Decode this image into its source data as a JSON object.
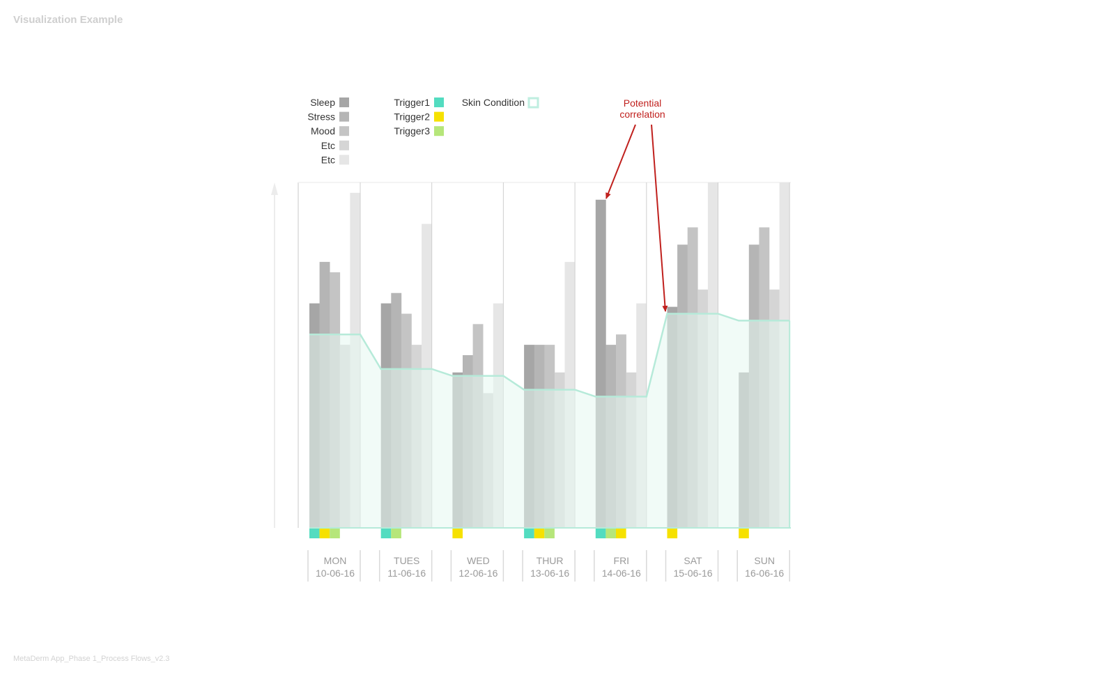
{
  "page": {
    "title": "Visualization Example",
    "footer": "MetaDerm App_Phase 1_Process Flows_v2.3"
  },
  "annotation": {
    "line1": "Potential",
    "line2": "correlation",
    "color": "#c0201d"
  },
  "chart_data": {
    "type": "bar",
    "title": "",
    "xlabel": "",
    "ylabel": "",
    "ylim": [
      0,
      100
    ],
    "grid": false,
    "legend_position": "top-left",
    "categories": [
      {
        "day": "MON",
        "date": "10-06-16"
      },
      {
        "day": "TUES",
        "date": "11-06-16"
      },
      {
        "day": "WED",
        "date": "12-06-16"
      },
      {
        "day": "THUR",
        "date": "13-06-16"
      },
      {
        "day": "FRI",
        "date": "14-06-16"
      },
      {
        "day": "SAT",
        "date": "15-06-16"
      },
      {
        "day": "SUN",
        "date": "16-06-16"
      }
    ],
    "series": [
      {
        "name": "Sleep",
        "color": "#a6a6a6",
        "values": [
          65,
          65,
          45,
          53,
          95,
          64,
          45
        ]
      },
      {
        "name": "Stress",
        "color": "#b5b5b5",
        "values": [
          77,
          68,
          50,
          53,
          53,
          82,
          82
        ]
      },
      {
        "name": "Mood",
        "color": "#c4c4c4",
        "values": [
          74,
          62,
          59,
          53,
          56,
          87,
          87
        ]
      },
      {
        "name": "Etc",
        "color": "#d5d5d5",
        "values": [
          53,
          53,
          39,
          45,
          45,
          69,
          69
        ]
      },
      {
        "name": "Etc",
        "color": "#e6e6e6",
        "values": [
          97,
          88,
          65,
          77,
          65,
          100,
          100
        ]
      }
    ],
    "skin_condition": {
      "name": "Skin Condition",
      "color": "#bfeee0",
      "line_color": "#b6ead9",
      "fill_color": "#e5f8f1",
      "values": [
        56,
        46,
        44,
        40,
        38,
        62,
        60
      ]
    },
    "triggers": [
      {
        "name": "Trigger1",
        "color": "#53dcc0"
      },
      {
        "name": "Trigger2",
        "color": "#f6e100"
      },
      {
        "name": "Trigger3",
        "color": "#b6e67a"
      }
    ],
    "trigger_marks": [
      [
        "Trigger1",
        "Trigger2",
        "Trigger3"
      ],
      [
        "Trigger1",
        "Trigger3"
      ],
      [
        "Trigger2"
      ],
      [
        "Trigger1",
        "Trigger2",
        "Trigger3"
      ],
      [
        "Trigger1",
        "Trigger3",
        "Trigger2"
      ],
      [
        "Trigger2"
      ],
      [
        "Trigger2"
      ]
    ]
  }
}
